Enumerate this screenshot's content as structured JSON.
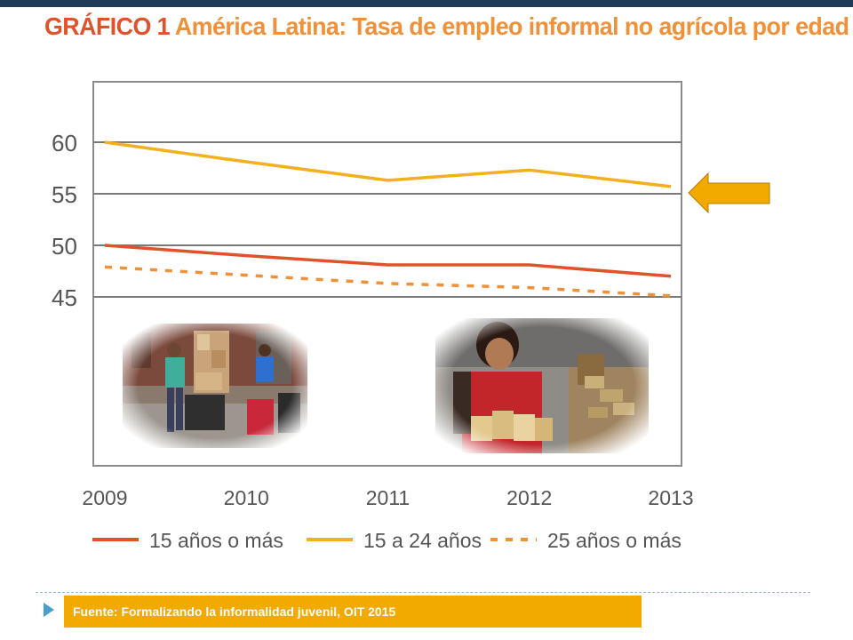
{
  "title": {
    "label": "GRÁFICO 1",
    "text": "América Latina: Tasa de empleo informal no agrícola por edad"
  },
  "source": "Fuente: Formalizando la informalidad juvenil, OIT 2015",
  "colors": {
    "series_15_mas": "#e0532a",
    "series_15_24": "#f2b01e",
    "series_25_mas": "#f0913a",
    "arrow": "#f2a900",
    "source_bar": "#f2a900",
    "title_label": "#e0532a",
    "title_text": "#f0913a"
  },
  "photos": [
    {
      "icon": "street-workers-photo"
    },
    {
      "icon": "girl-sorting-packages-photo"
    }
  ],
  "chart_data": {
    "type": "line",
    "title": "",
    "xlabel": "",
    "ylabel": "",
    "x": [
      "2009",
      "2010",
      "2011",
      "2012",
      "2013"
    ],
    "y_ticks": [
      45,
      50,
      55,
      60
    ],
    "ylim": [
      45,
      60
    ],
    "grid": true,
    "legend_position": "bottom",
    "series": [
      {
        "name": "15 años o más",
        "values": [
          50.0,
          49.0,
          48.1,
          48.1,
          47.0
        ],
        "color": "#e0532a",
        "style": "solid"
      },
      {
        "name": "15 a 24 años",
        "values": [
          60.0,
          58.1,
          56.3,
          57.3,
          55.7
        ],
        "color": "#f2b01e",
        "style": "solid"
      },
      {
        "name": "25 años o más",
        "values": [
          47.9,
          47.1,
          46.3,
          45.9,
          45.1
        ],
        "color": "#f0913a",
        "style": "dashed"
      }
    ],
    "annotation": {
      "type": "arrow",
      "points_to": "15 a 24 años"
    }
  }
}
